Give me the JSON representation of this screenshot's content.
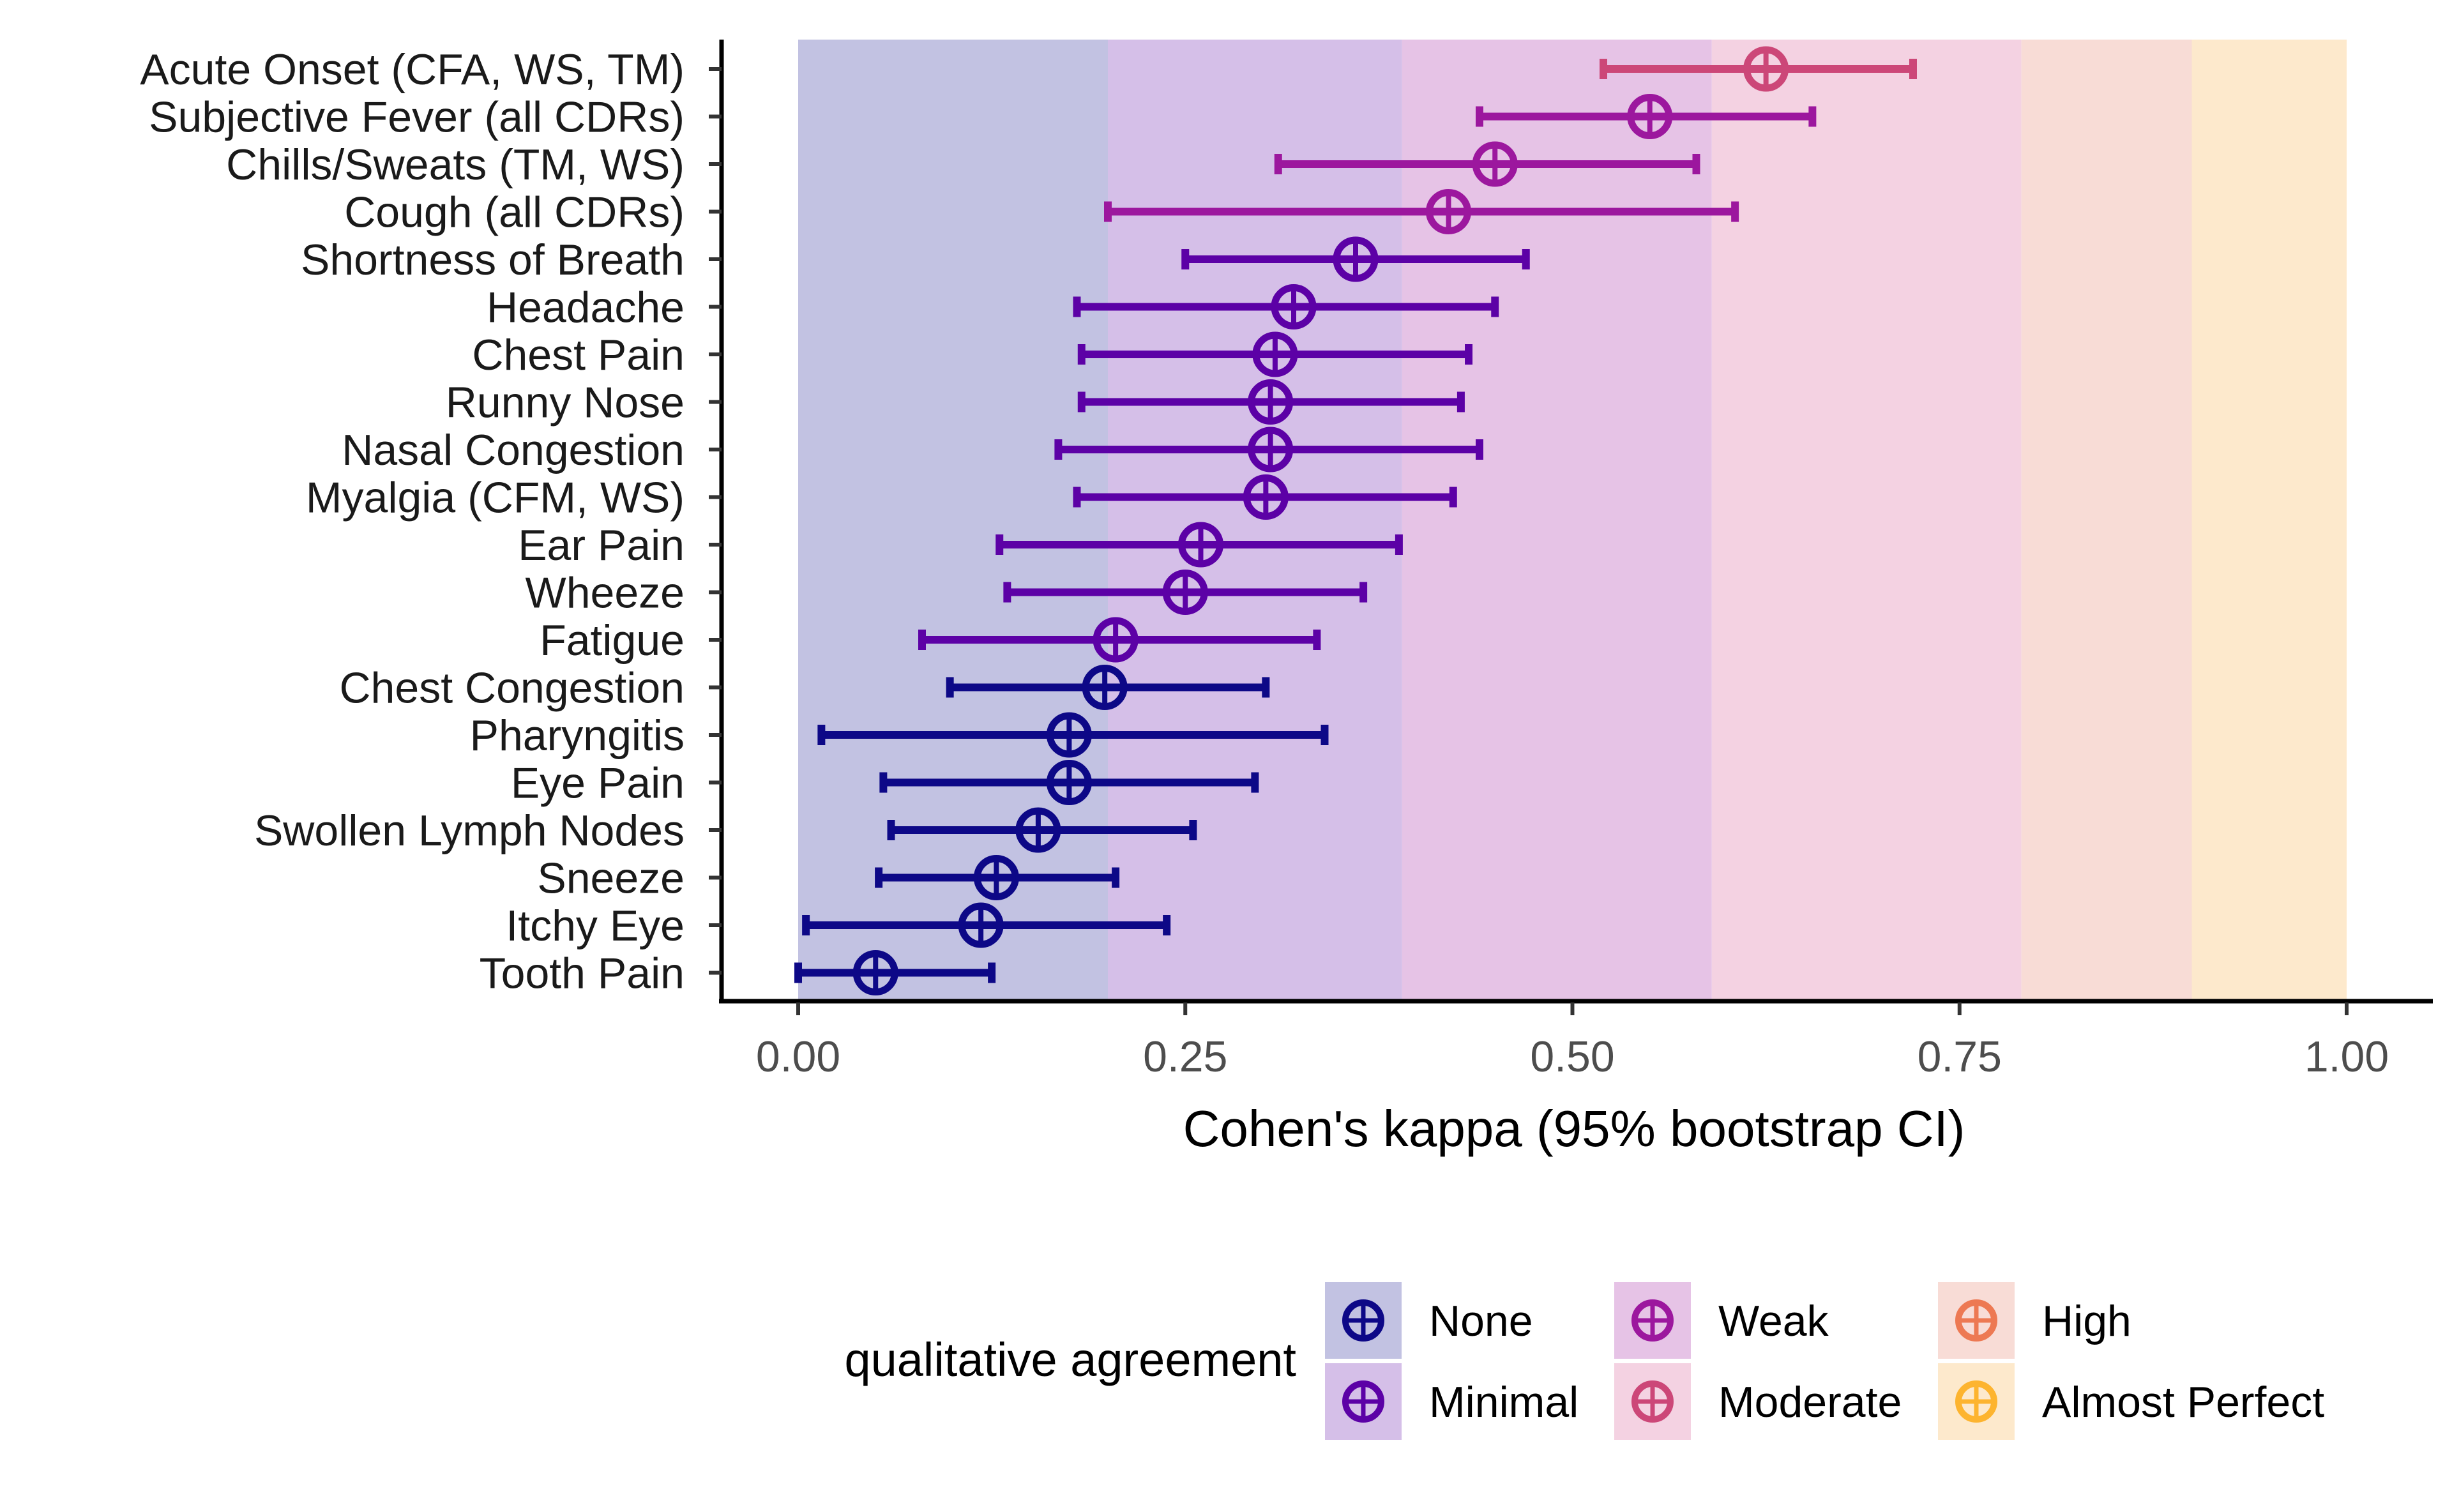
{
  "chart_data": {
    "type": "forest",
    "xlabel": "Cohen's kappa (95% bootstrap CI)",
    "xlim": [
      -0.1,
      1.05
    ],
    "xticks": [
      0,
      0.25,
      0.5,
      0.75,
      1
    ],
    "xtick_labels": [
      "0.00",
      "0.25",
      "0.50",
      "0.75",
      "1.00"
    ],
    "grid": false,
    "legend": {
      "title": "qualitative agreement",
      "position": "bottom"
    },
    "categories": [
      {
        "name": "None",
        "from": 0,
        "to": 0.2,
        "band_color": "#c2c2e2",
        "point_color": "#0d0887"
      },
      {
        "name": "Minimal",
        "from": 0.2,
        "to": 0.39,
        "band_color": "#d5bfe8",
        "point_color": "#5c01a6"
      },
      {
        "name": "Weak",
        "from": 0.39,
        "to": 0.59,
        "band_color": "#e6c3e6",
        "point_color": "#9c179e"
      },
      {
        "name": "Moderate",
        "from": 0.59,
        "to": 0.79,
        "band_color": "#f4d2e2",
        "point_color": "#cc4778"
      },
      {
        "name": "High",
        "from": 0.79,
        "to": 0.9,
        "band_color": "#f8dcd6",
        "point_color": "#ed7953"
      },
      {
        "name": "Almost Perfect",
        "from": 0.9,
        "to": 1.0,
        "band_color": "#fde9cc",
        "point_color": "#fdb42f"
      }
    ],
    "rows": [
      {
        "label": "Acute Onset (CFA, WS, TM)",
        "kappa": 0.625,
        "lower": 0.52,
        "upper": 0.72,
        "category": "Moderate"
      },
      {
        "label": "Subjective Fever (all CDRs)",
        "kappa": 0.55,
        "lower": 0.44,
        "upper": 0.655,
        "category": "Weak"
      },
      {
        "label": "Chills/Sweats (TM, WS)",
        "kappa": 0.45,
        "lower": 0.31,
        "upper": 0.58,
        "category": "Weak"
      },
      {
        "label": "Cough (all CDRs)",
        "kappa": 0.42,
        "lower": 0.2,
        "upper": 0.605,
        "category": "Weak"
      },
      {
        "label": "Shortness of Breath",
        "kappa": 0.36,
        "lower": 0.25,
        "upper": 0.47,
        "category": "Minimal"
      },
      {
        "label": "Headache",
        "kappa": 0.32,
        "lower": 0.18,
        "upper": 0.45,
        "category": "Minimal"
      },
      {
        "label": "Chest Pain",
        "kappa": 0.308,
        "lower": 0.183,
        "upper": 0.433,
        "category": "Minimal"
      },
      {
        "label": "Runny Nose",
        "kappa": 0.305,
        "lower": 0.183,
        "upper": 0.428,
        "category": "Minimal"
      },
      {
        "label": "Nasal Congestion",
        "kappa": 0.305,
        "lower": 0.168,
        "upper": 0.44,
        "category": "Minimal"
      },
      {
        "label": "Myalgia (CFM, WS)",
        "kappa": 0.302,
        "lower": 0.18,
        "upper": 0.423,
        "category": "Minimal"
      },
      {
        "label": "Ear Pain",
        "kappa": 0.26,
        "lower": 0.13,
        "upper": 0.388,
        "category": "Minimal"
      },
      {
        "label": "Wheeze",
        "kappa": 0.25,
        "lower": 0.135,
        "upper": 0.365,
        "category": "Minimal"
      },
      {
        "label": "Fatigue",
        "kappa": 0.205,
        "lower": 0.08,
        "upper": 0.335,
        "category": "Minimal"
      },
      {
        "label": "Chest Congestion",
        "kappa": 0.198,
        "lower": 0.098,
        "upper": 0.302,
        "category": "None"
      },
      {
        "label": "Pharyngitis",
        "kappa": 0.175,
        "lower": 0.015,
        "upper": 0.34,
        "category": "None"
      },
      {
        "label": "Eye Pain",
        "kappa": 0.175,
        "lower": 0.055,
        "upper": 0.295,
        "category": "None"
      },
      {
        "label": "Swollen Lymph Nodes",
        "kappa": 0.155,
        "lower": 0.06,
        "upper": 0.255,
        "category": "None"
      },
      {
        "label": "Sneeze",
        "kappa": 0.128,
        "lower": 0.052,
        "upper": 0.205,
        "category": "None"
      },
      {
        "label": "Itchy Eye",
        "kappa": 0.118,
        "lower": 0.005,
        "upper": 0.238,
        "category": "None"
      },
      {
        "label": "Tooth Pain",
        "kappa": 0.05,
        "lower": 0.0,
        "upper": 0.125,
        "category": "None"
      }
    ]
  }
}
